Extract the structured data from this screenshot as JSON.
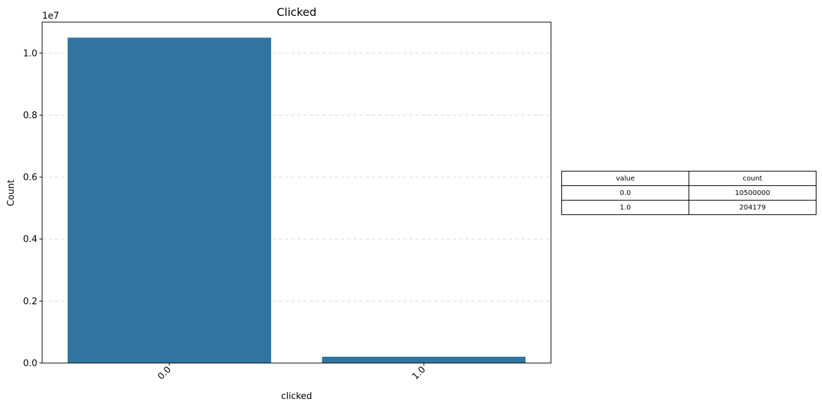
{
  "chart_data": {
    "type": "bar",
    "title": "Clicked",
    "xlabel": "clicked",
    "ylabel": "Count",
    "y_offset_label": "1e7",
    "categories": [
      "0.0",
      "1.0"
    ],
    "values": [
      10500000,
      204179
    ],
    "ylim": [
      0,
      11000000
    ],
    "yticks": [
      0,
      2000000,
      4000000,
      6000000,
      8000000,
      10000000
    ],
    "ytick_labels": [
      "0.0",
      "0.2",
      "0.4",
      "0.6",
      "0.8",
      "1.0"
    ],
    "grid": "y dashed",
    "bar_color": "#3274a1",
    "grid_color": "#d9d9d9"
  },
  "table": {
    "headers": [
      "value",
      "count"
    ],
    "rows": [
      [
        "0.0",
        "10500000"
      ],
      [
        "1.0",
        "204179"
      ]
    ]
  }
}
